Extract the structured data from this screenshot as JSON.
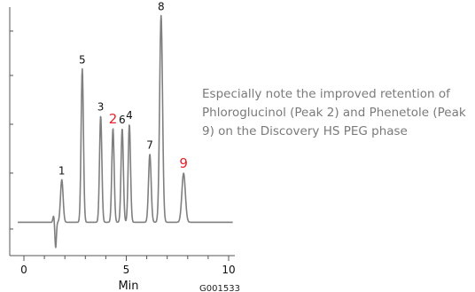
{
  "chart_data": {
    "type": "line",
    "xlabel": "Min",
    "xlim": [
      0,
      10
    ],
    "xticks": [
      "0",
      "5",
      "10"
    ],
    "baseline": 0.04,
    "peaks": [
      {
        "label": "1",
        "rt": 1.85,
        "height": 0.2,
        "width": 0.09
      },
      {
        "label": "5",
        "rt": 2.85,
        "height": 0.72,
        "width": 0.08
      },
      {
        "label": "3",
        "rt": 3.75,
        "height": 0.5,
        "width": 0.08
      },
      {
        "label": "2",
        "rt": 4.35,
        "height": 0.44,
        "width": 0.08
      },
      {
        "label": "6",
        "rt": 4.8,
        "height": 0.44,
        "width": 0.08
      },
      {
        "label": "4",
        "rt": 5.15,
        "height": 0.46,
        "width": 0.08
      },
      {
        "label": "7",
        "rt": 6.15,
        "height": 0.32,
        "width": 0.09
      },
      {
        "label": "8",
        "rt": 6.7,
        "height": 0.97,
        "width": 0.1
      },
      {
        "label": "9",
        "rt": 7.8,
        "height": 0.23,
        "width": 0.12
      }
    ],
    "highlighted_peaks": [
      "2",
      "9"
    ],
    "trace_color": "#7f7f7f",
    "label_color": "#111111",
    "highlight_color": "#e8202a"
  },
  "caption": {
    "line1": "Especially note the improved retention of",
    "line2": "Phloroglucinol (Peak 2) and Phenetole (Peak",
    "line3": "9) on the Discovery HS PEG phase"
  },
  "figure_id": "G001533"
}
